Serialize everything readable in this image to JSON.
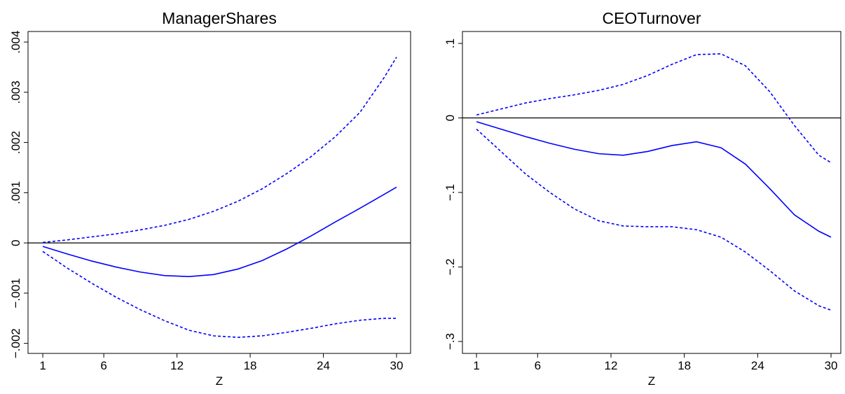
{
  "chart_data": [
    {
      "type": "line",
      "title": "ManagerShares",
      "x_label": "Z",
      "x": [
        1,
        3,
        5,
        7,
        9,
        11,
        13,
        15,
        17,
        19,
        21,
        23,
        25,
        27,
        29,
        30
      ],
      "xlim": [
        -0.21,
        31.15
      ],
      "xticks": [
        1,
        6,
        12,
        18,
        24,
        30
      ],
      "ylim": [
        -0.0022,
        0.00421
      ],
      "yticks": [
        {
          "value": -0.002,
          "label": "−.002"
        },
        {
          "value": -0.001,
          "label": "−.001"
        },
        0,
        {
          "value": 0.001,
          "label": ".001"
        },
        {
          "value": 0.002,
          "label": ".002"
        },
        {
          "value": 0.003,
          "label": ".003"
        },
        {
          "value": 0.004,
          "label": ".004"
        }
      ],
      "hline": 0,
      "hline_color": "#000000",
      "series": [
        {
          "color": "#0000ff",
          "style": "solid",
          "values": [
            -7e-05,
            -0.00022,
            -0.00036,
            -0.00048,
            -0.00058,
            -0.00065,
            -0.00067,
            -0.00063,
            -0.00052,
            -0.00035,
            -0.00012,
            0.00014,
            0.00042,
            0.00069,
            0.00097,
            0.00111
          ]
        },
        {
          "color": "#0000ff",
          "style": "dashed",
          "values": [
            1e-05,
            6e-05,
            0.00012,
            0.00018,
            0.00026,
            0.00035,
            0.00047,
            0.00063,
            0.00083,
            0.00108,
            0.00138,
            0.00172,
            0.00212,
            0.0026,
            0.0033,
            0.0037
          ]
        },
        {
          "color": "#0000ff",
          "style": "dashed",
          "values": [
            -0.00017,
            -0.0005,
            -0.0008,
            -0.00108,
            -0.00133,
            -0.00155,
            -0.00174,
            -0.00185,
            -0.00188,
            -0.00185,
            -0.00178,
            -0.0017,
            -0.00161,
            -0.00154,
            -0.0015,
            -0.0015
          ]
        }
      ]
    },
    {
      "type": "line",
      "title": "CEOTurnover",
      "x_label": "Z",
      "x": [
        1,
        3,
        5,
        7,
        9,
        11,
        13,
        15,
        17,
        19,
        21,
        23,
        25,
        27,
        29,
        30
      ],
      "xlim": [
        -0.15,
        30.8
      ],
      "xticks": [
        1,
        6,
        12,
        18,
        24,
        30
      ],
      "ylim": [
        -0.316,
        0.116
      ],
      "yticks": [
        {
          "value": -0.3,
          "label": "−.3"
        },
        {
          "value": -0.2,
          "label": "−.2"
        },
        {
          "value": -0.1,
          "label": "−.1"
        },
        0,
        {
          "value": 0.1,
          "label": ".1"
        }
      ],
      "hline": 0,
      "hline_color": "#000000",
      "series": [
        {
          "color": "#0000ff",
          "style": "solid",
          "values": [
            -0.005,
            -0.015,
            -0.025,
            -0.034,
            -0.042,
            -0.048,
            -0.05,
            -0.045,
            -0.037,
            -0.032,
            -0.04,
            -0.062,
            -0.095,
            -0.13,
            -0.152,
            -0.16
          ]
        },
        {
          "color": "#0000ff",
          "style": "dashed",
          "values": [
            0.004,
            0.012,
            0.02,
            0.026,
            0.031,
            0.037,
            0.045,
            0.057,
            0.072,
            0.085,
            0.086,
            0.07,
            0.035,
            -0.01,
            -0.05,
            -0.06
          ]
        },
        {
          "color": "#0000ff",
          "style": "dashed",
          "values": [
            -0.015,
            -0.045,
            -0.075,
            -0.1,
            -0.122,
            -0.138,
            -0.145,
            -0.146,
            -0.146,
            -0.15,
            -0.16,
            -0.18,
            -0.205,
            -0.232,
            -0.252,
            -0.258
          ]
        }
      ]
    }
  ]
}
